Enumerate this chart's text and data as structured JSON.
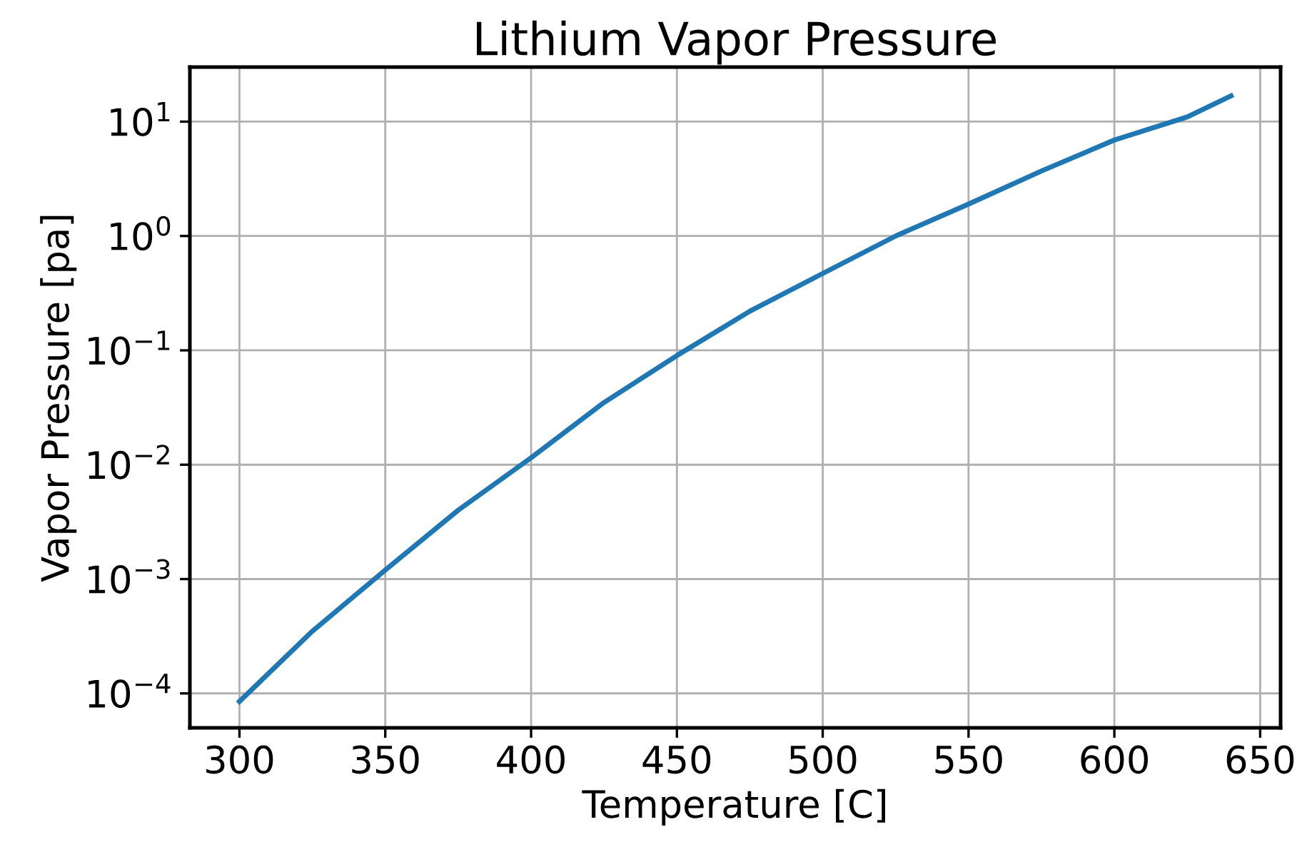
{
  "chart_data": {
    "type": "line",
    "title": "Lithium Vapor Pressure",
    "xlabel": "Temperature [C]",
    "ylabel": "Vapor Pressure [pa]",
    "x": [
      300,
      325,
      350,
      375,
      400,
      425,
      450,
      475,
      500,
      525,
      550,
      575,
      600,
      625,
      640
    ],
    "series": [
      {
        "color": "#1f77b4",
        "values": [
          8.5e-05,
          0.00035,
          0.0012,
          0.004,
          0.0115,
          0.035,
          0.09,
          0.22,
          0.47,
          1.0,
          1.9,
          3.7,
          6.9,
          11,
          16.8
        ]
      }
    ],
    "log": "y",
    "grid": true,
    "xlim": [
      283,
      657
    ],
    "ylim": [
      5e-05,
      30
    ],
    "xticks": [
      300,
      350,
      400,
      450,
      500,
      550,
      600,
      650
    ],
    "yticks": [
      {
        "value": 0.0001,
        "label": "10$^{−4}$"
      },
      {
        "value": 0.001,
        "label": "10$^{−3}$"
      },
      {
        "value": 0.01,
        "label": "10$^{−2}$"
      },
      {
        "value": 0.1,
        "label": "10$^{−1}$"
      },
      {
        "value": 1,
        "label": "10$^{0}$"
      },
      {
        "value": 10,
        "label": "10$^{1}$"
      }
    ]
  }
}
